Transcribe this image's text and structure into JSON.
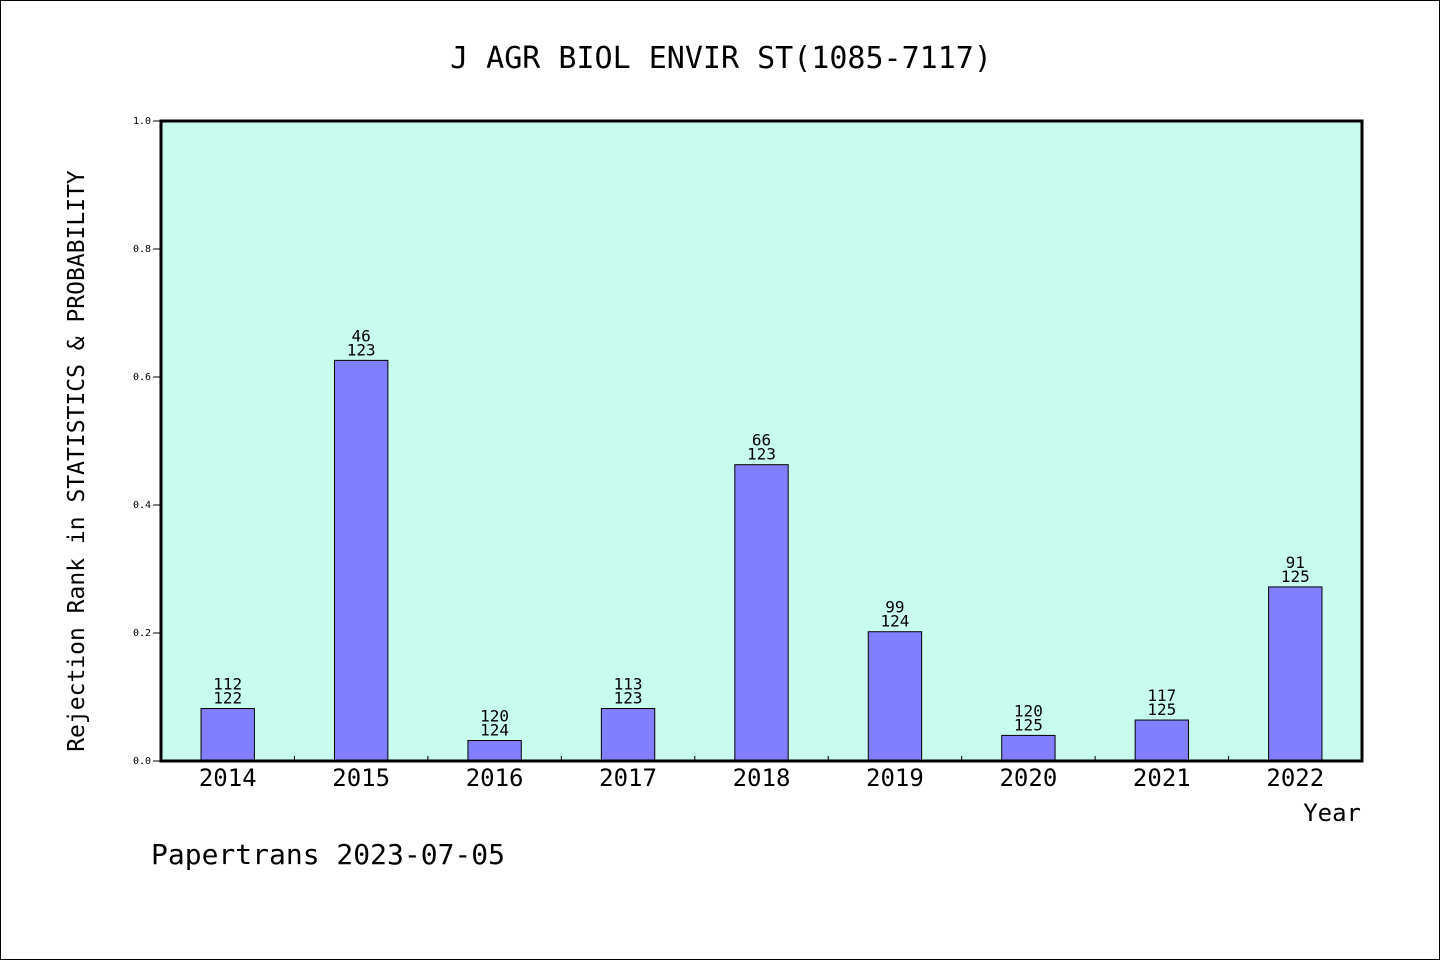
{
  "chart_data": {
    "type": "bar",
    "title": "J AGR BIOL ENVIR ST(1085-7117)",
    "ylabel": "Rejection Rank in STATISTICS & PROBABILITY",
    "xlabel": "Year",
    "ylim": [
      0,
      1
    ],
    "yticks": [
      "0.0",
      "0.2",
      "0.4",
      "0.6",
      "0.8",
      "1.0"
    ],
    "categories": [
      "2014",
      "2015",
      "2016",
      "2017",
      "2018",
      "2019",
      "2020",
      "2021",
      "2022"
    ],
    "values": [
      0.082,
      0.626,
      0.032,
      0.082,
      0.463,
      0.202,
      0.04,
      0.064,
      0.272
    ],
    "labels_top": [
      "112",
      "46",
      "120",
      "113",
      "66",
      "99",
      "120",
      "117",
      "91"
    ],
    "labels_bottom": [
      "122",
      "123",
      "124",
      "123",
      "123",
      "124",
      "125",
      "125",
      "125"
    ],
    "grid": false,
    "colors": {
      "plot_background": "#c8fcee",
      "bar_fill": "#8080ff",
      "bar_stroke": "#000000"
    }
  },
  "footer": "Papertrans 2023-07-05"
}
